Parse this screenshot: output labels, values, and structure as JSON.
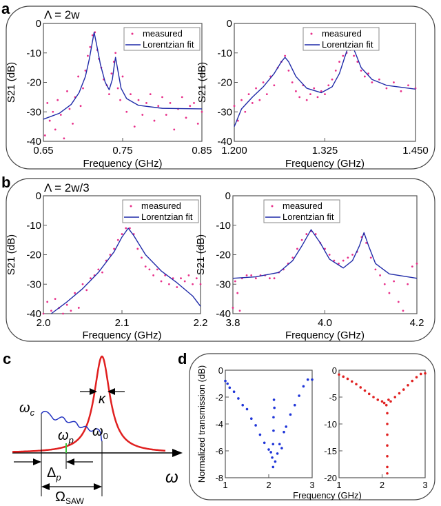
{
  "panel_labels": {
    "a": "a",
    "b": "b",
    "c": "c",
    "d": "d"
  },
  "panel_a_condition": "Λ = 2w",
  "panel_b_condition": "Λ = 2w/3",
  "legend": {
    "measured": "measured",
    "fit": "Lorentzian fit"
  },
  "colors": {
    "measured": "#e8308a",
    "fit": "#1f2aa8",
    "d_left": "#1f35d8",
    "d_right": "#e02020",
    "lorentz": "#e02020",
    "green": "#3cc43c"
  },
  "diagram_c": {
    "omega_c": {
      "main": "ω",
      "sub": "c"
    },
    "omega_0": {
      "main": "ω",
      "sub": "0"
    },
    "omega_p": {
      "main": "ω",
      "sub": "p"
    },
    "delta_p": {
      "main": "Δ",
      "sub": "p"
    },
    "omega_saw": {
      "main": "Ω",
      "sub": "SAW"
    },
    "kappa": "κ",
    "omega_axis": "ω"
  },
  "chart_data": [
    {
      "id": "a-left",
      "type": "scatter+line",
      "xlabel": "Frequency (GHz)",
      "ylabel": "S21 (dB)",
      "xlim": [
        0.65,
        0.85
      ],
      "ylim": [
        -40,
        0
      ],
      "xticks": [
        "0.65",
        "0.75",
        "0.85"
      ],
      "yticks": [
        "0",
        "-10",
        "-20",
        "-30",
        "-40"
      ],
      "grid": false,
      "legend": "top-right",
      "fit": [
        [
          0.65,
          -32.5
        ],
        [
          0.67,
          -30.5
        ],
        [
          0.685,
          -27.5
        ],
        [
          0.695,
          -23.5
        ],
        [
          0.703,
          -18
        ],
        [
          0.708,
          -12
        ],
        [
          0.712,
          -6
        ],
        [
          0.714,
          -3
        ],
        [
          0.717,
          -7
        ],
        [
          0.722,
          -14
        ],
        [
          0.728,
          -20
        ],
        [
          0.733,
          -22.5
        ],
        [
          0.737,
          -19
        ],
        [
          0.739,
          -15
        ],
        [
          0.741,
          -11.5
        ],
        [
          0.744,
          -16
        ],
        [
          0.748,
          -22
        ],
        [
          0.755,
          -25.5
        ],
        [
          0.77,
          -27.8
        ],
        [
          0.8,
          -28.8
        ],
        [
          0.85,
          -29
        ]
      ],
      "measured": [
        [
          0.652,
          -38
        ],
        [
          0.655,
          -27
        ],
        [
          0.658,
          -33
        ],
        [
          0.662,
          -30
        ],
        [
          0.665,
          -36
        ],
        [
          0.668,
          -26
        ],
        [
          0.672,
          -31
        ],
        [
          0.676,
          -39
        ],
        [
          0.68,
          -23
        ],
        [
          0.683,
          -29
        ],
        [
          0.687,
          -34
        ],
        [
          0.69,
          -25
        ],
        [
          0.694,
          -18
        ],
        [
          0.697,
          -28
        ],
        [
          0.7,
          -22
        ],
        [
          0.703,
          -16
        ],
        [
          0.706,
          -11
        ],
        [
          0.709,
          -8
        ],
        [
          0.712,
          -4
        ],
        [
          0.715,
          -3
        ],
        [
          0.718,
          -9
        ],
        [
          0.72,
          -12
        ],
        [
          0.723,
          -15
        ],
        [
          0.726,
          -19
        ],
        [
          0.73,
          -21
        ],
        [
          0.733,
          -24
        ],
        [
          0.736,
          -17
        ],
        [
          0.739,
          -13
        ],
        [
          0.741,
          -10
        ],
        [
          0.744,
          -22
        ],
        [
          0.747,
          -26
        ],
        [
          0.75,
          -18
        ],
        [
          0.755,
          -30
        ],
        [
          0.76,
          -24
        ],
        [
          0.765,
          -35
        ],
        [
          0.77,
          -26
        ],
        [
          0.775,
          -31
        ],
        [
          0.78,
          -27
        ],
        [
          0.785,
          -24
        ],
        [
          0.79,
          -33
        ],
        [
          0.795,
          -28
        ],
        [
          0.8,
          -25
        ],
        [
          0.805,
          -31
        ],
        [
          0.81,
          -27
        ],
        [
          0.815,
          -36
        ],
        [
          0.82,
          -29
        ],
        [
          0.825,
          -25
        ],
        [
          0.83,
          -32
        ],
        [
          0.835,
          -28
        ],
        [
          0.84,
          -27
        ],
        [
          0.845,
          -34
        ],
        [
          0.85,
          -30
        ]
      ]
    },
    {
      "id": "a-right",
      "type": "scatter+line",
      "xlabel": "Frequency (GHz)",
      "ylabel": "S21 (dB)",
      "xlim": [
        1.2,
        1.45
      ],
      "ylim": [
        -40,
        0
      ],
      "xticks": [
        "1.200",
        "1.325",
        "1.450"
      ],
      "yticks": [
        "0",
        "-10",
        "-20",
        "-30",
        "-40"
      ],
      "grid": false,
      "legend": "top-left",
      "fit": [
        [
          1.2,
          -35
        ],
        [
          1.21,
          -29
        ],
        [
          1.225,
          -25
        ],
        [
          1.24,
          -21.5
        ],
        [
          1.255,
          -17
        ],
        [
          1.265,
          -13
        ],
        [
          1.27,
          -11.5
        ],
        [
          1.275,
          -13
        ],
        [
          1.285,
          -18
        ],
        [
          1.3,
          -22
        ],
        [
          1.32,
          -23.5
        ],
        [
          1.335,
          -21.5
        ],
        [
          1.345,
          -17
        ],
        [
          1.353,
          -11
        ],
        [
          1.36,
          -6
        ],
        [
          1.367,
          -10
        ],
        [
          1.375,
          -15
        ],
        [
          1.39,
          -19
        ],
        [
          1.41,
          -21
        ],
        [
          1.45,
          -22.3
        ]
      ],
      "measured": [
        [
          1.2,
          -28
        ],
        [
          1.205,
          -33
        ],
        [
          1.21,
          -26
        ],
        [
          1.215,
          -30
        ],
        [
          1.22,
          -24
        ],
        [
          1.225,
          -27
        ],
        [
          1.23,
          -22
        ],
        [
          1.235,
          -26
        ],
        [
          1.24,
          -20
        ],
        [
          1.245,
          -24
        ],
        [
          1.25,
          -18
        ],
        [
          1.255,
          -21
        ],
        [
          1.26,
          -15
        ],
        [
          1.265,
          -13
        ],
        [
          1.27,
          -11
        ],
        [
          1.275,
          -16
        ],
        [
          1.28,
          -20
        ],
        [
          1.285,
          -23
        ],
        [
          1.29,
          -25
        ],
        [
          1.295,
          -21
        ],
        [
          1.3,
          -26
        ],
        [
          1.305,
          -24
        ],
        [
          1.31,
          -22
        ],
        [
          1.315,
          -25
        ],
        [
          1.32,
          -23
        ],
        [
          1.325,
          -24
        ],
        [
          1.33,
          -21
        ],
        [
          1.335,
          -19
        ],
        [
          1.34,
          -16
        ],
        [
          1.345,
          -13
        ],
        [
          1.35,
          -11
        ],
        [
          1.355,
          -10
        ],
        [
          1.36,
          -9
        ],
        [
          1.365,
          -11
        ],
        [
          1.37,
          -13
        ],
        [
          1.375,
          -16
        ],
        [
          1.38,
          -18
        ],
        [
          1.385,
          -17
        ],
        [
          1.39,
          -20
        ],
        [
          1.4,
          -19
        ],
        [
          1.41,
          -22
        ],
        [
          1.42,
          -20
        ],
        [
          1.43,
          -23
        ],
        [
          1.44,
          -21
        ],
        [
          1.45,
          -22
        ]
      ]
    },
    {
      "id": "b-left",
      "type": "scatter+line",
      "xlabel": "Frequency (GHz)",
      "ylabel": "S21 (dB)",
      "xlim": [
        2.0,
        2.2
      ],
      "ylim": [
        -40,
        0
      ],
      "xticks": [
        "2.0",
        "2.1",
        "2.2"
      ],
      "yticks": [
        "0",
        "-10",
        "-20",
        "-30",
        "-40"
      ],
      "grid": false,
      "legend": "top-right",
      "fit": [
        [
          2.01,
          -40
        ],
        [
          2.03,
          -36
        ],
        [
          2.05,
          -31.5
        ],
        [
          2.07,
          -26
        ],
        [
          2.09,
          -19
        ],
        [
          2.1,
          -14
        ],
        [
          2.108,
          -11
        ],
        [
          2.115,
          -13.5
        ],
        [
          2.13,
          -20
        ],
        [
          2.15,
          -25.5
        ],
        [
          2.17,
          -29.5
        ],
        [
          2.19,
          -34
        ],
        [
          2.2,
          -37.5
        ]
      ],
      "measured": [
        [
          2.0,
          -40
        ],
        [
          2.005,
          -36
        ],
        [
          2.01,
          -39
        ],
        [
          2.015,
          -35
        ],
        [
          2.02,
          -38
        ],
        [
          2.025,
          -40
        ],
        [
          2.03,
          -37
        ],
        [
          2.035,
          -39
        ],
        [
          2.04,
          -33
        ],
        [
          2.045,
          -38
        ],
        [
          2.05,
          -30
        ],
        [
          2.055,
          -32
        ],
        [
          2.06,
          -28
        ],
        [
          2.065,
          -27
        ],
        [
          2.07,
          -25
        ],
        [
          2.075,
          -26
        ],
        [
          2.08,
          -22
        ],
        [
          2.085,
          -20
        ],
        [
          2.09,
          -18
        ],
        [
          2.095,
          -15
        ],
        [
          2.1,
          -13
        ],
        [
          2.105,
          -11
        ],
        [
          2.11,
          -11
        ],
        [
          2.115,
          -13
        ],
        [
          2.12,
          -18
        ],
        [
          2.125,
          -21
        ],
        [
          2.13,
          -24
        ],
        [
          2.135,
          -25
        ],
        [
          2.14,
          -27
        ],
        [
          2.145,
          -25
        ],
        [
          2.15,
          -29
        ],
        [
          2.155,
          -27
        ],
        [
          2.16,
          -30
        ],
        [
          2.165,
          -28
        ],
        [
          2.17,
          -31
        ],
        [
          2.175,
          -28
        ],
        [
          2.18,
          -29
        ],
        [
          2.185,
          -27
        ],
        [
          2.19,
          -30
        ],
        [
          2.195,
          -28
        ],
        [
          2.2,
          -30
        ]
      ]
    },
    {
      "id": "b-right",
      "type": "scatter+line",
      "xlabel": "Frequency (GHz)",
      "ylabel": "S21 (dB)",
      "xlim": [
        3.8,
        4.2
      ],
      "ylim": [
        -40,
        0
      ],
      "xticks": [
        "3.8",
        "4.0",
        "4.2"
      ],
      "yticks": [
        "0",
        "-10",
        "-20",
        "-30",
        "-40"
      ],
      "grid": false,
      "legend": "top-left",
      "fit": [
        [
          3.8,
          -28
        ],
        [
          3.85,
          -27.5
        ],
        [
          3.9,
          -26
        ],
        [
          3.93,
          -22
        ],
        [
          3.95,
          -17
        ],
        [
          3.97,
          -11.5
        ],
        [
          3.99,
          -16
        ],
        [
          4.01,
          -21.5
        ],
        [
          4.04,
          -24.5
        ],
        [
          4.06,
          -22
        ],
        [
          4.075,
          -17
        ],
        [
          4.085,
          -12.5
        ],
        [
          4.095,
          -17
        ],
        [
          4.11,
          -23
        ],
        [
          4.14,
          -26.5
        ],
        [
          4.2,
          -28
        ]
      ],
      "measured": [
        [
          3.8,
          -38
        ],
        [
          3.805,
          -29
        ],
        [
          3.81,
          -33
        ],
        [
          3.815,
          -39
        ],
        [
          3.82,
          -28
        ],
        [
          3.83,
          -27
        ],
        [
          3.84,
          -27
        ],
        [
          3.85,
          -28
        ],
        [
          3.86,
          -27
        ],
        [
          3.87,
          -27
        ],
        [
          3.88,
          -28
        ],
        [
          3.89,
          -28
        ],
        [
          3.9,
          -26
        ],
        [
          3.91,
          -25
        ],
        [
          3.92,
          -23
        ],
        [
          3.93,
          -21
        ],
        [
          3.94,
          -18
        ],
        [
          3.95,
          -15
        ],
        [
          3.96,
          -13
        ],
        [
          3.97,
          -12
        ],
        [
          3.98,
          -13
        ],
        [
          3.99,
          -16
        ],
        [
          4.0,
          -18
        ],
        [
          4.01,
          -20
        ],
        [
          4.02,
          -22
        ],
        [
          4.03,
          -23
        ],
        [
          4.04,
          -22
        ],
        [
          4.05,
          -21
        ],
        [
          4.06,
          -20
        ],
        [
          4.07,
          -19
        ],
        [
          4.08,
          -14
        ],
        [
          4.085,
          -13
        ],
        [
          4.09,
          -16
        ],
        [
          4.1,
          -21
        ],
        [
          4.11,
          -25
        ],
        [
          4.12,
          -27
        ],
        [
          4.13,
          -30
        ],
        [
          4.14,
          -33
        ],
        [
          4.15,
          -29
        ],
        [
          4.16,
          -36
        ],
        [
          4.17,
          -39
        ],
        [
          4.18,
          -30
        ],
        [
          4.19,
          -24
        ],
        [
          4.2,
          -23
        ]
      ]
    },
    {
      "id": "d-left",
      "type": "scatter",
      "xlabel": "Frequency (GHz)",
      "ylabel": "Normalized transmission (dB)",
      "xlim": [
        1,
        3
      ],
      "ylim": [
        -8,
        0
      ],
      "xticks": [
        "1",
        "2",
        "3"
      ],
      "yticks": [
        "0",
        "-2",
        "-4",
        "-6",
        "-8"
      ],
      "grid": false,
      "measured": [
        [
          1.0,
          -0.8
        ],
        [
          1.05,
          -1.0
        ],
        [
          1.1,
          -1.3
        ],
        [
          1.2,
          -1.6
        ],
        [
          1.3,
          -2.1
        ],
        [
          1.4,
          -2.6
        ],
        [
          1.5,
          -2.9
        ],
        [
          1.6,
          -3.6
        ],
        [
          1.7,
          -4.1
        ],
        [
          1.8,
          -4.8
        ],
        [
          1.9,
          -5.4
        ],
        [
          2.0,
          -5.9
        ],
        [
          2.05,
          -6.1
        ],
        [
          2.08,
          -6.5
        ],
        [
          2.1,
          -7.2
        ],
        [
          2.1,
          -5.5
        ],
        [
          2.11,
          -4.5
        ],
        [
          2.11,
          -3.5
        ],
        [
          2.12,
          -2.2
        ],
        [
          2.13,
          -2.8
        ],
        [
          2.15,
          -6.8
        ],
        [
          2.2,
          -6.2
        ],
        [
          2.25,
          -5.5
        ],
        [
          2.3,
          -5.8
        ],
        [
          2.35,
          -4.6
        ],
        [
          2.4,
          -4.2
        ],
        [
          2.5,
          -3.3
        ],
        [
          2.6,
          -2.6
        ],
        [
          2.7,
          -1.9
        ],
        [
          2.8,
          -1.2
        ],
        [
          2.9,
          -0.7
        ],
        [
          3.0,
          -0.7
        ]
      ]
    },
    {
      "id": "d-right",
      "type": "scatter",
      "xlabel": "Frequency (GHz)",
      "ylabel": "",
      "xlim": [
        1,
        3
      ],
      "ylim": [
        -20,
        0
      ],
      "xticks": [
        "1",
        "2",
        "3"
      ],
      "yticks": [
        "0",
        "-5",
        "-10",
        "-15",
        "-20"
      ],
      "grid": false,
      "measured": [
        [
          1.0,
          -0.8
        ],
        [
          1.1,
          -1.2
        ],
        [
          1.2,
          -1.6
        ],
        [
          1.3,
          -2.1
        ],
        [
          1.4,
          -2.6
        ],
        [
          1.5,
          -3.2
        ],
        [
          1.6,
          -3.8
        ],
        [
          1.7,
          -4.4
        ],
        [
          1.8,
          -5.0
        ],
        [
          1.9,
          -5.5
        ],
        [
          2.0,
          -5.8
        ],
        [
          2.05,
          -6.1
        ],
        [
          2.1,
          -6.5
        ],
        [
          2.12,
          -8
        ],
        [
          2.12,
          -10
        ],
        [
          2.12,
          -12
        ],
        [
          2.12,
          -14
        ],
        [
          2.12,
          -16
        ],
        [
          2.12,
          -18
        ],
        [
          2.12,
          -19.2
        ],
        [
          2.15,
          -5.5
        ],
        [
          2.2,
          -5.8
        ],
        [
          2.3,
          -5.0
        ],
        [
          2.4,
          -4.3
        ],
        [
          2.5,
          -3.6
        ],
        [
          2.6,
          -2.8
        ],
        [
          2.7,
          -2.0
        ],
        [
          2.8,
          -1.3
        ],
        [
          2.9,
          -0.7
        ],
        [
          3.0,
          -0.6
        ]
      ]
    }
  ]
}
